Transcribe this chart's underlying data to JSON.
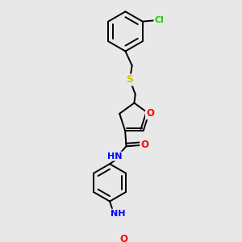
{
  "background_color": "#e8e8e8",
  "bond_color": "#000000",
  "atom_colors": {
    "Cl": "#22cc00",
    "S": "#cccc00",
    "O": "#ff0000",
    "N": "#0000ff",
    "C": "#000000",
    "H": "#000000"
  },
  "figsize": [
    3.0,
    3.0
  ],
  "dpi": 100,
  "lw": 1.4
}
